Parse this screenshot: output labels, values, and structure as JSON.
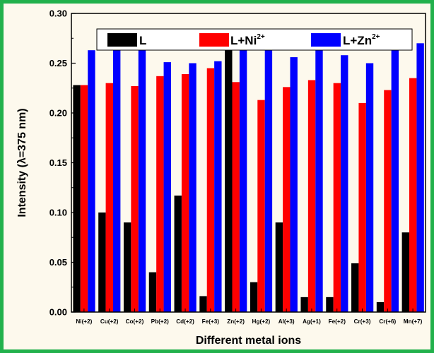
{
  "chart_data": {
    "type": "bar",
    "title": "",
    "xlabel": "Different metal ions",
    "ylabel": "Intensity (λ=375 nm)",
    "ylim": [
      0,
      0.3
    ],
    "yticks": [
      "0.00",
      "0.05",
      "0.10",
      "0.15",
      "0.20",
      "0.25",
      "0.30"
    ],
    "categories": [
      "Ni(+2)",
      "Cu(+2)",
      "Co(+2)",
      "Pb(+2)",
      "Cd(+2)",
      "Fe(+3)",
      "Zn(+2)",
      "Hg(+2)",
      "Al(+3)",
      "Ag(+1)",
      "Fe(+2)",
      "Cr(+3)",
      "Cr(+6)",
      "Mn(+7)"
    ],
    "legend_position": "top",
    "series": [
      {
        "name": "L",
        "legend_base": "L",
        "legend_sup": "",
        "color": "#000000",
        "values": [
          0.228,
          0.1,
          0.09,
          0.04,
          0.117,
          0.016,
          0.263,
          0.03,
          0.09,
          0.015,
          0.015,
          0.049,
          0.01,
          0.08
        ]
      },
      {
        "name": "L+Ni2+",
        "legend_base": "L+Ni",
        "legend_sup": "2+",
        "color": "#ff0000",
        "values": [
          0.228,
          0.23,
          0.227,
          0.237,
          0.239,
          0.245,
          0.231,
          0.213,
          0.226,
          0.233,
          0.23,
          0.21,
          0.223,
          0.235
        ]
      },
      {
        "name": "L+Zn2+",
        "legend_base": "L+Zn",
        "legend_sup": "2+",
        "color": "#0000ff",
        "values": [
          0.263,
          0.268,
          0.263,
          0.251,
          0.25,
          0.252,
          0.263,
          0.263,
          0.256,
          0.263,
          0.258,
          0.25,
          0.28,
          0.27
        ]
      }
    ]
  },
  "colors": {
    "border": "#22b14c",
    "background": "#fdf9ed"
  }
}
